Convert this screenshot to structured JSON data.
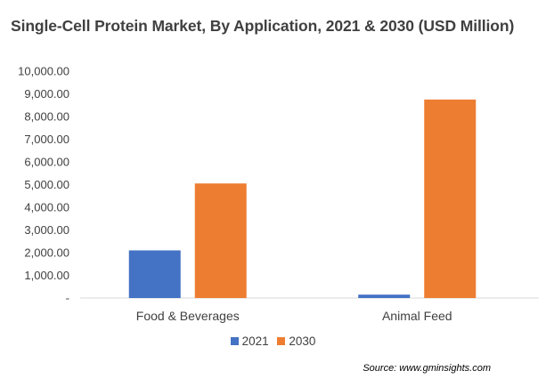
{
  "chart_data": {
    "type": "bar",
    "title": "Single-Cell Protein Market, By Application, 2021 & 2030 (USD Million)",
    "categories": [
      "Food & Beverages",
      "Animal Feed"
    ],
    "series": [
      {
        "name": "2021",
        "values": [
          2100,
          150
        ],
        "color": "#4472C4"
      },
      {
        "name": "2030",
        "values": [
          5050,
          8750
        ],
        "color": "#ED7D31"
      }
    ],
    "ylim": [
      0,
      10000
    ],
    "yticks": [
      0,
      1000,
      2000,
      3000,
      4000,
      5000,
      6000,
      7000,
      8000,
      9000,
      10000
    ],
    "ytick_labels": [
      "-",
      "1,000.00",
      "2,000.00",
      "3,000.00",
      "4,000.00",
      "5,000.00",
      "6,000.00",
      "7,000.00",
      "8,000.00",
      "9,000.00",
      "10,000.00"
    ],
    "grid": false,
    "legend": "bottom",
    "source": "Source: www.gminsights.com"
  }
}
